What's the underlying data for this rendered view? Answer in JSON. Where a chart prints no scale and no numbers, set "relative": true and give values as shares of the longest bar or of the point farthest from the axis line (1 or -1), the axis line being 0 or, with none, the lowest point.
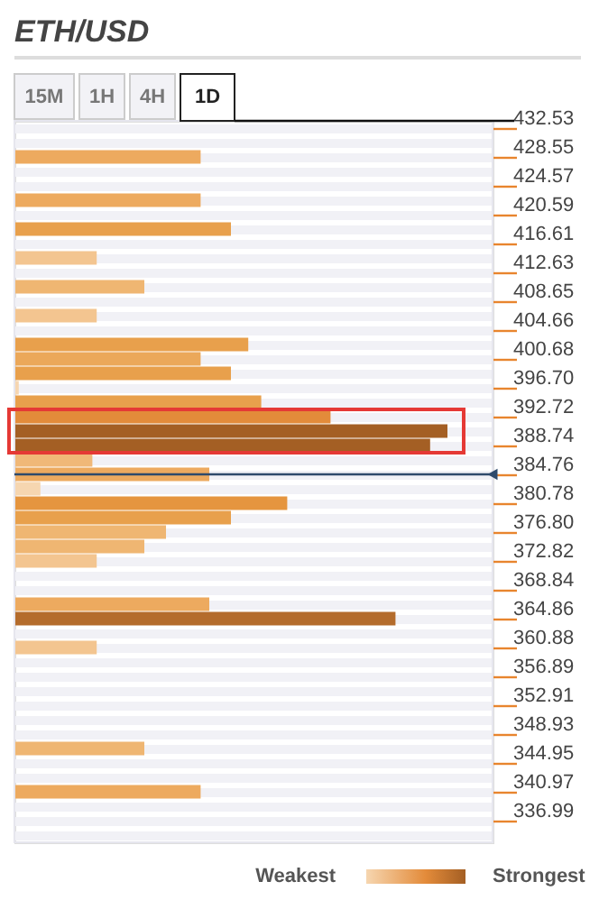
{
  "chart_data": {
    "type": "bar",
    "orientation": "horizontal",
    "relative": true,
    "title": "ETH/USD",
    "categories": [
      "432.53",
      null,
      "428.55",
      null,
      "424.57",
      null,
      "420.59",
      null,
      "416.61",
      null,
      "412.63",
      null,
      "408.65",
      null,
      "404.66",
      null,
      "400.68",
      null,
      "396.70",
      null,
      "392.72",
      null,
      "388.74",
      null,
      "384.76",
      null,
      "380.78",
      null,
      "376.80",
      null,
      "372.82",
      null,
      "368.84",
      null,
      "364.86",
      null,
      "360.88",
      null,
      "356.89",
      null,
      "352.91",
      null,
      "348.93",
      null,
      "344.95",
      null,
      "340.97",
      null,
      "336.99",
      null
    ],
    "values": [
      null,
      null,
      0.43,
      null,
      null,
      0.43,
      null,
      0.5,
      null,
      0.19,
      null,
      0.3,
      null,
      0.19,
      null,
      0.54,
      0.43,
      0.5,
      0.01,
      0.57,
      0.73,
      1,
      0.96,
      0.18,
      0.45,
      0.06,
      0.63,
      0.5,
      0.35,
      0.3,
      0.19,
      null,
      null,
      0.45,
      0.88,
      null,
      0.19,
      null,
      null,
      null,
      null,
      null,
      null,
      0.3,
      null,
      null,
      0.43,
      null,
      null,
      null
    ],
    "colors": [
      null,
      null,
      "#edaa5f",
      null,
      null,
      "#edaa5f",
      null,
      "#e8a04c",
      null,
      "#f3c590",
      null,
      "#efb672",
      null,
      "#f3c590",
      null,
      "#e8a04c",
      "#eba85a",
      "#e8a04c",
      "#f6d6b0",
      "#e8a04c",
      "#e38b3a",
      "#a45f24",
      "#a45f24",
      "#f0b878",
      "#edaa5f",
      "#f6d6b0",
      "#e5953f",
      "#e8a04c",
      "#efb672",
      "#efb672",
      "#f3c590",
      null,
      null,
      "#edaa5f",
      "#b46c2c",
      null,
      "#f3c590",
      null,
      null,
      null,
      null,
      null,
      null,
      "#efb672",
      null,
      null,
      "#edaa5f",
      null,
      null,
      null
    ],
    "ref_lines": [
      {
        "axis": "y",
        "value": "384.76",
        "color": "#2e4a6b"
      }
    ],
    "annotations": [
      "15M",
      "1H",
      "4H",
      "1D",
      "Weakest",
      "Strongest"
    ],
    "grid": "y"
  }
}
